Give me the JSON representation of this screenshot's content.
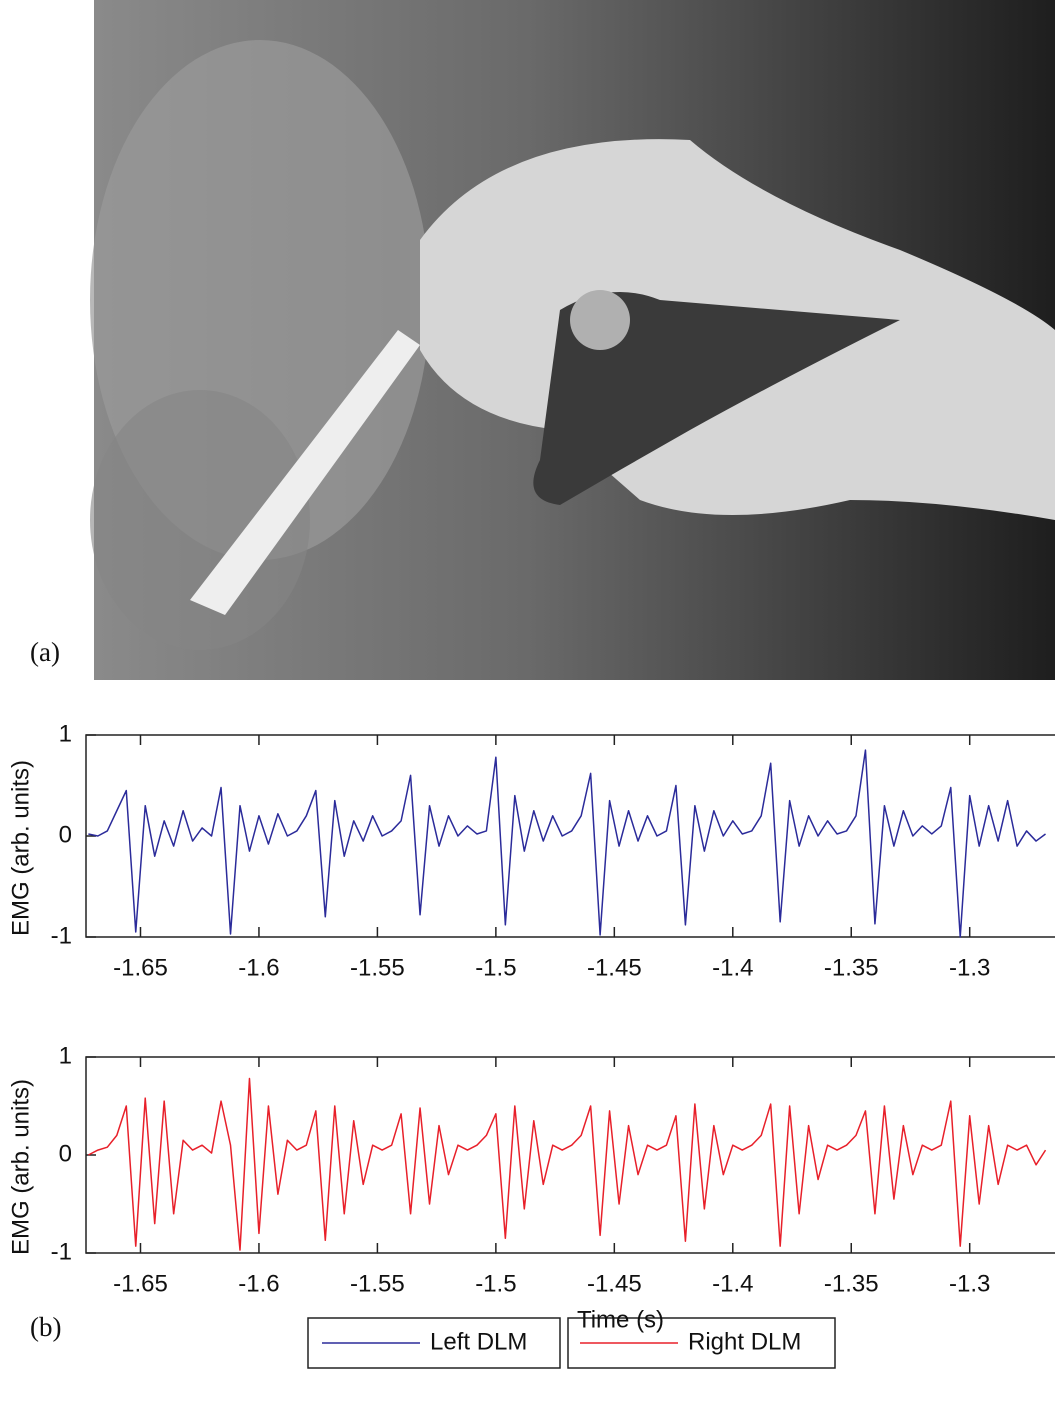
{
  "panel_labels": [
    "(a)",
    "(b)"
  ],
  "chart_data": [
    {
      "type": "line",
      "ylabel": "EMG (arb. units)",
      "x": [
        -1.672,
        -1.668,
        -1.664,
        -1.66,
        -1.656,
        -1.652,
        -1.648,
        -1.644,
        -1.64,
        -1.636,
        -1.632,
        -1.628,
        -1.624,
        -1.62,
        -1.616,
        -1.612,
        -1.608,
        -1.604,
        -1.6,
        -1.596,
        -1.592,
        -1.588,
        -1.584,
        -1.58,
        -1.576,
        -1.572,
        -1.568,
        -1.564,
        -1.56,
        -1.556,
        -1.552,
        -1.548,
        -1.544,
        -1.54,
        -1.536,
        -1.532,
        -1.528,
        -1.524,
        -1.52,
        -1.516,
        -1.512,
        -1.508,
        -1.504,
        -1.5,
        -1.496,
        -1.492,
        -1.488,
        -1.484,
        -1.48,
        -1.476,
        -1.472,
        -1.468,
        -1.464,
        -1.46,
        -1.456,
        -1.452,
        -1.448,
        -1.444,
        -1.44,
        -1.436,
        -1.432,
        -1.428,
        -1.424,
        -1.42,
        -1.416,
        -1.412,
        -1.408,
        -1.404,
        -1.4,
        -1.396,
        -1.392,
        -1.388,
        -1.384,
        -1.38,
        -1.376,
        -1.372,
        -1.368,
        -1.364,
        -1.36,
        -1.356,
        -1.352,
        -1.348,
        -1.344,
        -1.34,
        -1.336,
        -1.332,
        -1.328,
        -1.324,
        -1.32,
        -1.316,
        -1.312,
        -1.308,
        -1.304,
        -1.3,
        -1.296,
        -1.292,
        -1.288,
        -1.284,
        -1.28,
        -1.276,
        -1.272,
        -1.268
      ],
      "series": [
        {
          "name": "Left DLM",
          "color": "#2b2b9a",
          "values": [
            0.02,
            0.0,
            0.05,
            0.25,
            0.45,
            -0.95,
            0.3,
            -0.2,
            0.15,
            -0.1,
            0.25,
            -0.05,
            0.08,
            0.0,
            0.48,
            -0.97,
            0.3,
            -0.15,
            0.2,
            -0.08,
            0.22,
            0.0,
            0.05,
            0.2,
            0.45,
            -0.8,
            0.35,
            -0.2,
            0.15,
            -0.05,
            0.2,
            0.0,
            0.05,
            0.15,
            0.6,
            -0.78,
            0.3,
            -0.1,
            0.2,
            0.0,
            0.1,
            0.02,
            0.05,
            0.78,
            -0.88,
            0.4,
            -0.15,
            0.25,
            -0.05,
            0.2,
            0.0,
            0.05,
            0.2,
            0.62,
            -0.98,
            0.35,
            -0.1,
            0.25,
            -0.05,
            0.2,
            0.0,
            0.05,
            0.5,
            -0.88,
            0.3,
            -0.15,
            0.25,
            0.0,
            0.15,
            0.02,
            0.05,
            0.2,
            0.72,
            -0.85,
            0.35,
            -0.1,
            0.2,
            0.0,
            0.15,
            0.02,
            0.05,
            0.2,
            0.85,
            -0.87,
            0.3,
            -0.1,
            0.25,
            0.0,
            0.1,
            0.02,
            0.1,
            0.48,
            -1.0,
            0.4,
            -0.1,
            0.3,
            -0.05,
            0.35,
            -0.1,
            0.05,
            -0.05,
            0.02
          ]
        }
      ],
      "xlim": [
        -1.673,
        -1.264
      ],
      "xticks": [
        -1.65,
        -1.6,
        -1.55,
        -1.5,
        -1.45,
        -1.4,
        -1.35,
        -1.3
      ],
      "ylim": [
        -1,
        1
      ],
      "yticks": [
        -1,
        0,
        1
      ]
    },
    {
      "type": "line",
      "ylabel": "EMG (arb. units)",
      "xlabel": "Time (s)",
      "x": [
        -1.672,
        -1.668,
        -1.664,
        -1.66,
        -1.656,
        -1.652,
        -1.648,
        -1.644,
        -1.64,
        -1.636,
        -1.632,
        -1.628,
        -1.624,
        -1.62,
        -1.616,
        -1.612,
        -1.608,
        -1.604,
        -1.6,
        -1.596,
        -1.592,
        -1.588,
        -1.584,
        -1.58,
        -1.576,
        -1.572,
        -1.568,
        -1.564,
        -1.56,
        -1.556,
        -1.552,
        -1.548,
        -1.544,
        -1.54,
        -1.536,
        -1.532,
        -1.528,
        -1.524,
        -1.52,
        -1.516,
        -1.512,
        -1.508,
        -1.504,
        -1.5,
        -1.496,
        -1.492,
        -1.488,
        -1.484,
        -1.48,
        -1.476,
        -1.472,
        -1.468,
        -1.464,
        -1.46,
        -1.456,
        -1.452,
        -1.448,
        -1.444,
        -1.44,
        -1.436,
        -1.432,
        -1.428,
        -1.424,
        -1.42,
        -1.416,
        -1.412,
        -1.408,
        -1.404,
        -1.4,
        -1.396,
        -1.392,
        -1.388,
        -1.384,
        -1.38,
        -1.376,
        -1.372,
        -1.368,
        -1.364,
        -1.36,
        -1.356,
        -1.352,
        -1.348,
        -1.344,
        -1.34,
        -1.336,
        -1.332,
        -1.328,
        -1.324,
        -1.32,
        -1.316,
        -1.312,
        -1.308,
        -1.304,
        -1.3,
        -1.296,
        -1.292,
        -1.288,
        -1.284,
        -1.28,
        -1.276,
        -1.272,
        -1.268
      ],
      "series": [
        {
          "name": "Right DLM",
          "color": "#e8202a",
          "values": [
            0.0,
            0.05,
            0.08,
            0.2,
            0.5,
            -0.93,
            0.58,
            -0.7,
            0.55,
            -0.6,
            0.15,
            0.05,
            0.1,
            0.02,
            0.55,
            0.1,
            -0.97,
            0.78,
            -0.8,
            0.5,
            -0.4,
            0.15,
            0.05,
            0.1,
            0.45,
            -0.87,
            0.5,
            -0.6,
            0.35,
            -0.3,
            0.1,
            0.05,
            0.1,
            0.42,
            -0.6,
            0.48,
            -0.5,
            0.3,
            -0.2,
            0.1,
            0.05,
            0.1,
            0.2,
            0.42,
            -0.85,
            0.5,
            -0.55,
            0.35,
            -0.3,
            0.1,
            0.05,
            0.1,
            0.2,
            0.5,
            -0.82,
            0.45,
            -0.5,
            0.3,
            -0.2,
            0.1,
            0.05,
            0.1,
            0.4,
            -0.88,
            0.52,
            -0.55,
            0.3,
            -0.2,
            0.1,
            0.05,
            0.1,
            0.2,
            0.52,
            -0.93,
            0.5,
            -0.6,
            0.3,
            -0.25,
            0.1,
            0.05,
            0.1,
            0.2,
            0.45,
            -0.6,
            0.5,
            -0.45,
            0.3,
            -0.2,
            0.1,
            0.05,
            0.1,
            0.55,
            -0.93,
            0.4,
            -0.5,
            0.3,
            -0.3,
            0.1,
            0.05,
            0.1,
            -0.1,
            0.05
          ]
        }
      ],
      "xlim": [
        -1.673,
        -1.264
      ],
      "xticks": [
        -1.65,
        -1.6,
        -1.55,
        -1.5,
        -1.45,
        -1.4,
        -1.35,
        -1.3
      ],
      "ylim": [
        -1,
        1
      ],
      "yticks": [
        -1,
        0,
        1
      ]
    }
  ]
}
